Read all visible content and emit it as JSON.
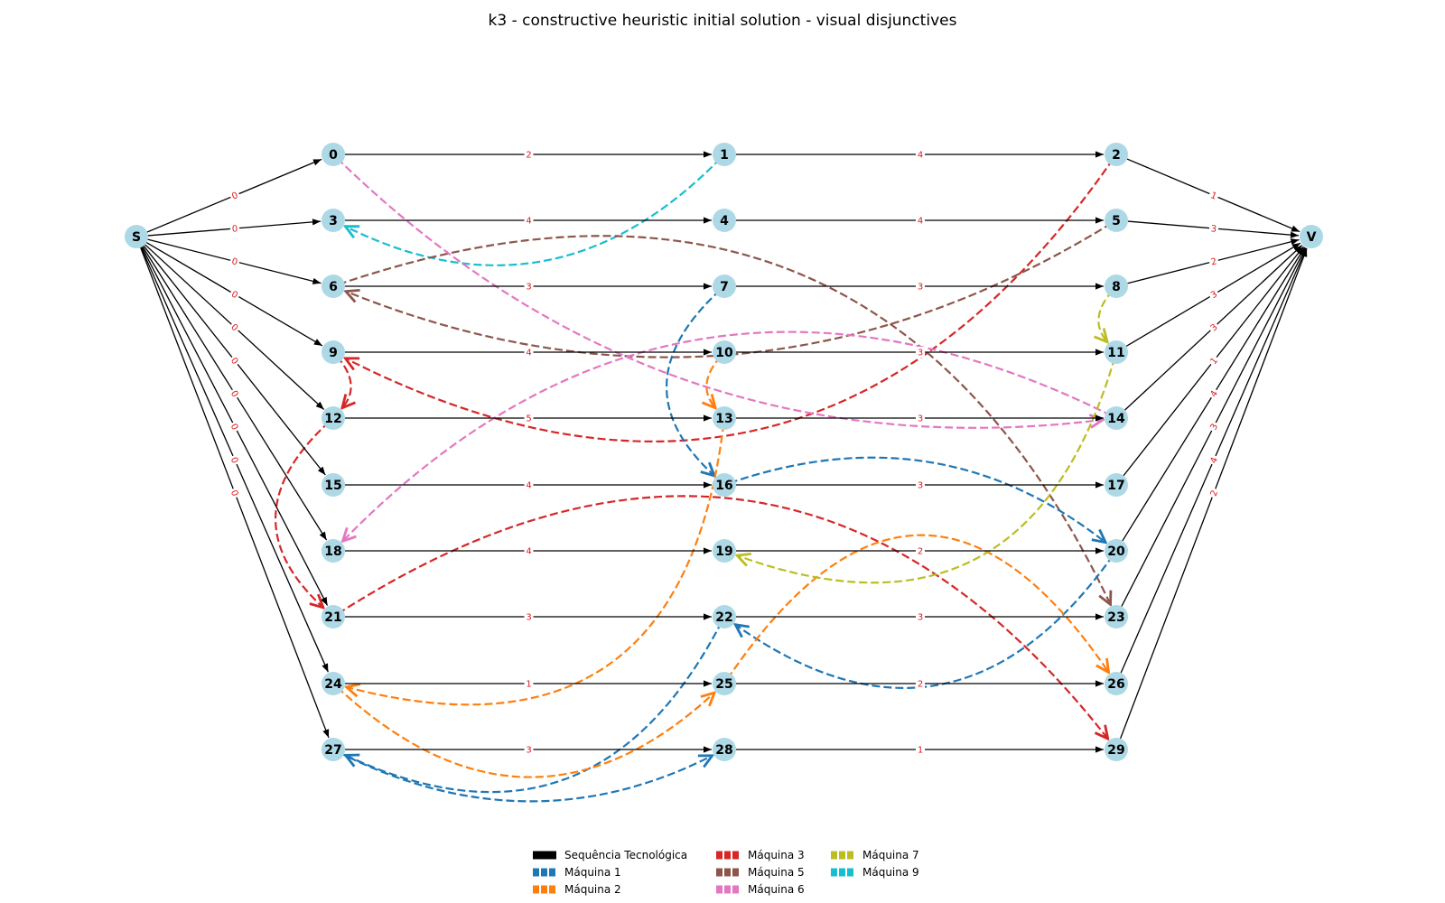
{
  "title": "k3 - constructive heuristic initial solution - visual disjunctives",
  "nodes": {
    "S": "S",
    "V": "V",
    "n0": "0",
    "n1": "1",
    "n2": "2",
    "n3": "3",
    "n4": "4",
    "n5": "5",
    "n6": "6",
    "n7": "7",
    "n8": "8",
    "n9": "9",
    "n10": "10",
    "n11": "11",
    "n12": "12",
    "n13": "13",
    "n14": "14",
    "n15": "15",
    "n16": "16",
    "n17": "17",
    "n18": "18",
    "n19": "19",
    "n20": "20",
    "n21": "21",
    "n22": "22",
    "n23": "23",
    "n24": "24",
    "n25": "25",
    "n26": "26",
    "n27": "27",
    "n28": "28",
    "n29": "29"
  },
  "technological_edges": [
    {
      "from": "S",
      "to": "n0",
      "weight": "0"
    },
    {
      "from": "S",
      "to": "n3",
      "weight": "0"
    },
    {
      "from": "S",
      "to": "n6",
      "weight": "0"
    },
    {
      "from": "S",
      "to": "n9",
      "weight": "0"
    },
    {
      "from": "S",
      "to": "n12",
      "weight": "0"
    },
    {
      "from": "S",
      "to": "n15",
      "weight": "0"
    },
    {
      "from": "S",
      "to": "n18",
      "weight": "0"
    },
    {
      "from": "S",
      "to": "n21",
      "weight": "0"
    },
    {
      "from": "S",
      "to": "n24",
      "weight": "0"
    },
    {
      "from": "S",
      "to": "n27",
      "weight": "0"
    },
    {
      "from": "n0",
      "to": "n1",
      "weight": "2"
    },
    {
      "from": "n1",
      "to": "n2",
      "weight": "4"
    },
    {
      "from": "n3",
      "to": "n4",
      "weight": "4"
    },
    {
      "from": "n4",
      "to": "n5",
      "weight": "4"
    },
    {
      "from": "n6",
      "to": "n7",
      "weight": "3"
    },
    {
      "from": "n7",
      "to": "n8",
      "weight": "3"
    },
    {
      "from": "n9",
      "to": "n10",
      "weight": "4"
    },
    {
      "from": "n10",
      "to": "n11",
      "weight": "3"
    },
    {
      "from": "n12",
      "to": "n13",
      "weight": "5"
    },
    {
      "from": "n13",
      "to": "n14",
      "weight": "3"
    },
    {
      "from": "n15",
      "to": "n16",
      "weight": "4"
    },
    {
      "from": "n16",
      "to": "n17",
      "weight": "3"
    },
    {
      "from": "n18",
      "to": "n19",
      "weight": "4"
    },
    {
      "from": "n19",
      "to": "n20",
      "weight": "2"
    },
    {
      "from": "n21",
      "to": "n22",
      "weight": "3"
    },
    {
      "from": "n22",
      "to": "n23",
      "weight": "3"
    },
    {
      "from": "n24",
      "to": "n25",
      "weight": "1"
    },
    {
      "from": "n25",
      "to": "n26",
      "weight": "2"
    },
    {
      "from": "n27",
      "to": "n28",
      "weight": "3"
    },
    {
      "from": "n28",
      "to": "n29",
      "weight": "1"
    },
    {
      "from": "n2",
      "to": "V",
      "weight": "1"
    },
    {
      "from": "n5",
      "to": "V",
      "weight": "3"
    },
    {
      "from": "n8",
      "to": "V",
      "weight": "2"
    },
    {
      "from": "n11",
      "to": "V",
      "weight": "3"
    },
    {
      "from": "n14",
      "to": "V",
      "weight": "3"
    },
    {
      "from": "n17",
      "to": "V",
      "weight": "1"
    },
    {
      "from": "n20",
      "to": "V",
      "weight": "4"
    },
    {
      "from": "n23",
      "to": "V",
      "weight": "3"
    },
    {
      "from": "n26",
      "to": "V",
      "weight": "4"
    },
    {
      "from": "n29",
      "to": "V",
      "weight": "2"
    }
  ],
  "disjunctive_edges": [
    {
      "machine": "m3",
      "from": "n2",
      "to": "n9"
    },
    {
      "machine": "m3",
      "from": "n9",
      "to": "n12"
    },
    {
      "machine": "m3",
      "from": "n12",
      "to": "n21"
    },
    {
      "machine": "m3",
      "from": "n21",
      "to": "n29"
    },
    {
      "machine": "m9",
      "from": "n1",
      "to": "n3"
    },
    {
      "machine": "m5",
      "from": "n5",
      "to": "n6"
    },
    {
      "machine": "m5",
      "from": "n6",
      "to": "n23"
    },
    {
      "machine": "m6",
      "from": "n0",
      "to": "n14"
    },
    {
      "machine": "m6",
      "from": "n14",
      "to": "n18"
    },
    {
      "machine": "m1",
      "from": "n7",
      "to": "n16"
    },
    {
      "machine": "m1",
      "from": "n16",
      "to": "n20"
    },
    {
      "machine": "m1",
      "from": "n20",
      "to": "n22"
    },
    {
      "machine": "m1",
      "from": "n22",
      "to": "n27"
    },
    {
      "machine": "m1",
      "from": "n27",
      "to": "n28"
    },
    {
      "machine": "m2",
      "from": "n10",
      "to": "n13"
    },
    {
      "machine": "m2",
      "from": "n13",
      "to": "n24"
    },
    {
      "machine": "m2",
      "from": "n24",
      "to": "n25"
    },
    {
      "machine": "m2",
      "from": "n25",
      "to": "n26"
    },
    {
      "machine": "m7",
      "from": "n8",
      "to": "n11"
    },
    {
      "machine": "m7",
      "from": "n11",
      "to": "n19"
    }
  ],
  "colors": {
    "node_fill": "#add8e6",
    "tech_edge": "#000000",
    "weight_text": "#e0191c",
    "m1": "#1f77b4",
    "m2": "#ff7f0e",
    "m3": "#d62728",
    "m5": "#8c564b",
    "m6": "#e377c2",
    "m7": "#bcbd22",
    "m9": "#17becf"
  },
  "legend": [
    {
      "key": "tech",
      "label": "Sequência Tecnológica"
    },
    {
      "key": "m1",
      "label": "Máquina 1"
    },
    {
      "key": "m2",
      "label": "Máquina 2"
    },
    {
      "key": "m3",
      "label": "Máquina 3"
    },
    {
      "key": "m5",
      "label": "Máquina 5"
    },
    {
      "key": "m6",
      "label": "Máquina 6"
    },
    {
      "key": "m7",
      "label": "Máquina 7"
    },
    {
      "key": "m9",
      "label": "Máquina 9"
    }
  ]
}
